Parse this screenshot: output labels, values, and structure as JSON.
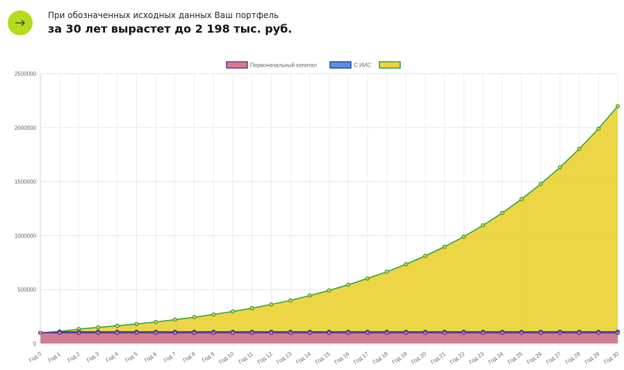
{
  "header": {
    "subtitle": "При обозначенных исходных данных Ваш портфель",
    "headline": "за 30 лет вырастет до 2 198 тыс. руб."
  },
  "colors": {
    "accent": "#b6dc1e",
    "initial_fill": "#d87a8d",
    "initial_stroke": "#5a3a8c",
    "iis_fill": "#5b8ee6",
    "iis_stroke": "#2d3f9a",
    "growth_fill": "#ecd43c",
    "growth_stroke": "#2e9e47"
  },
  "chart_data": {
    "type": "area",
    "categories": [
      "Год 0",
      "Год 1",
      "Год 2",
      "Год 3",
      "Год 4",
      "Год 5",
      "Год 6",
      "Год 7",
      "Год 8",
      "Год 9",
      "Год 10",
      "Год 11",
      "Год 12",
      "Год 13",
      "Год 14",
      "Год 15",
      "Год 16",
      "Год 17",
      "Год 18",
      "Год 19",
      "Год 20",
      "Год 21",
      "Год 22",
      "Год 23",
      "Год 24",
      "Год 25",
      "Год 26",
      "Год 27",
      "Год 28",
      "Год 29",
      "Год 30"
    ],
    "ylim": [
      0,
      2500000
    ],
    "yticks": [
      0,
      500000,
      1000000,
      1500000,
      2000000,
      2500000
    ],
    "grid": true,
    "legend_position": "top",
    "series": [
      {
        "name": "Первоначальный капитал",
        "values": [
          100000,
          100000,
          100000,
          100000,
          100000,
          100000,
          100000,
          100000,
          100000,
          100000,
          100000,
          100000,
          100000,
          100000,
          100000,
          100000,
          100000,
          100000,
          100000,
          100000,
          100000,
          100000,
          100000,
          100000,
          100000,
          100000,
          100000,
          100000,
          100000,
          100000,
          100000
        ]
      },
      {
        "name": "С ИИС",
        "values": [
          100000,
          110000,
          110000,
          110000,
          110000,
          110000,
          110000,
          110000,
          110000,
          110000,
          110000,
          110000,
          110000,
          110000,
          110000,
          110000,
          110000,
          110000,
          110000,
          110000,
          110000,
          110000,
          110000,
          110000,
          110000,
          110000,
          110000,
          110000,
          110000,
          110000,
          110000
        ]
      },
      {
        "name": "",
        "values": [
          100000,
          112000,
          135000,
          150000,
          165000,
          182000,
          200000,
          222000,
          245000,
          270000,
          298000,
          328000,
          363000,
          400000,
          445000,
          492000,
          545000,
          603000,
          665000,
          735000,
          812000,
          897000,
          990000,
          1095000,
          1210000,
          1338000,
          1478000,
          1632000,
          1803000,
          1990000,
          2198000
        ]
      }
    ]
  }
}
